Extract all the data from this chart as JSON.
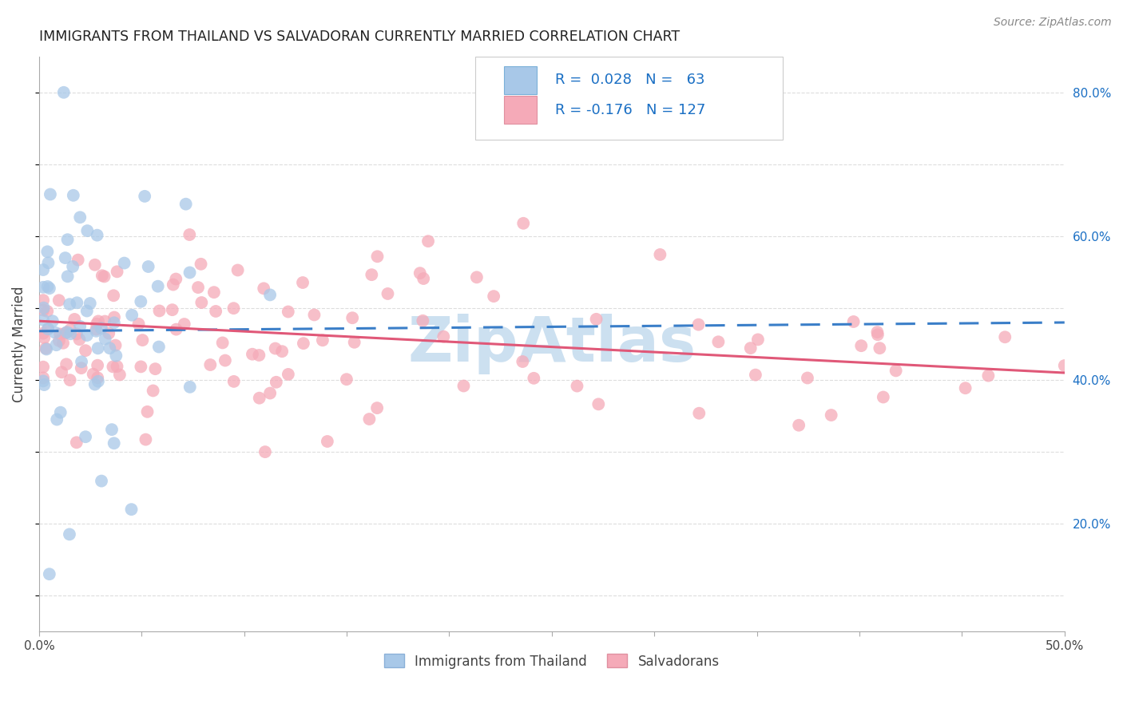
{
  "title": "IMMIGRANTS FROM THAILAND VS SALVADORAN CURRENTLY MARRIED CORRELATION CHART",
  "source": "Source: ZipAtlas.com",
  "ylabel": "Currently Married",
  "watermark": "ZipAtlas",
  "xlim": [
    0.0,
    0.5
  ],
  "ylim": [
    0.05,
    0.85
  ],
  "ytick_positions_right": [
    0.2,
    0.4,
    0.6,
    0.8
  ],
  "ytick_labels_right": [
    "20.0%",
    "40.0%",
    "60.0%",
    "80.0%"
  ],
  "color_thailand": "#a8c8e8",
  "color_salvadoran": "#f5aab8",
  "color_line_thailand": "#3a7ec8",
  "color_line_salvadoran": "#e05878",
  "color_legend_text": "#1a6fc4",
  "color_grid": "#dddddd",
  "color_watermark": "#cce0f0",
  "legend_label1": "Immigrants from Thailand",
  "legend_label2": "Salvadorans",
  "thailand_trend_start": 0.468,
  "thailand_trend_end": 0.48,
  "salvadoran_trend_start": 0.482,
  "salvadoran_trend_end": 0.41
}
